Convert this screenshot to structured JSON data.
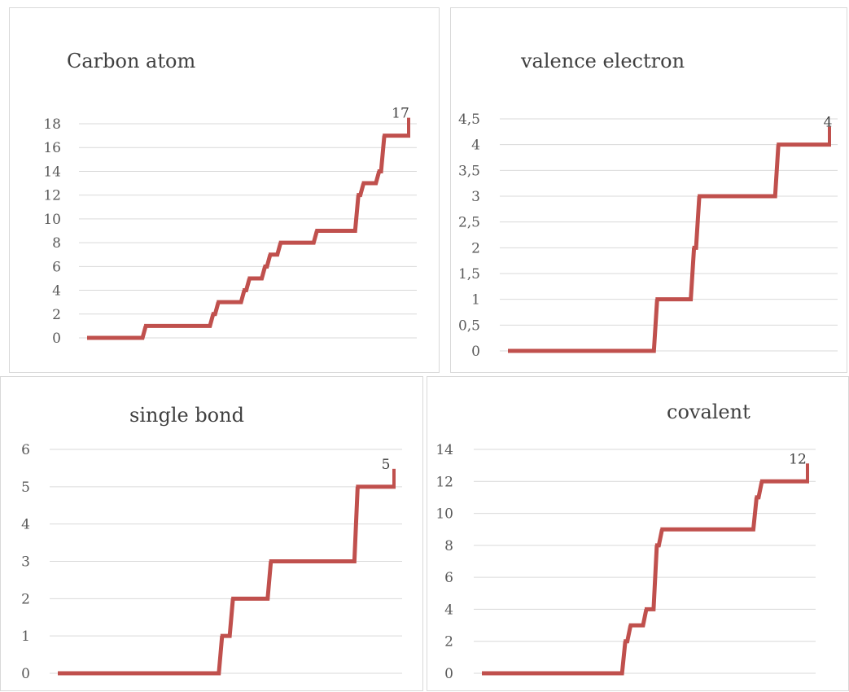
{
  "colors": {
    "series": "#c0504d",
    "grid": "#d9d9d9",
    "text": "#404040"
  },
  "chart_data": [
    {
      "type": "line",
      "title": "Carbon atom",
      "ylim": [
        0,
        18
      ],
      "yticks": [
        "0",
        "2",
        "4",
        "6",
        "8",
        "10",
        "12",
        "14",
        "16",
        "18"
      ],
      "grid": true,
      "series": [
        {
          "values": [
            0,
            0,
            0,
            0,
            0,
            0,
            0,
            0,
            0,
            0,
            0,
            1,
            1,
            1,
            1,
            1,
            1,
            1,
            1,
            1,
            1,
            1,
            1,
            1,
            2,
            3,
            3,
            3,
            3,
            3,
            4,
            5,
            5,
            5,
            6,
            7,
            7,
            8,
            8,
            8,
            8,
            8,
            8,
            8,
            9,
            9,
            9,
            9,
            9,
            9,
            9,
            9,
            12,
            13,
            13,
            13,
            14,
            17,
            17,
            17,
            17,
            17,
            17
          ]
        }
      ],
      "data_label": "17"
    },
    {
      "type": "line",
      "title": "valence electron",
      "ylim": [
        0,
        4.5
      ],
      "yticks": [
        "0",
        "0,5",
        "1",
        "1,5",
        "2",
        "2,5",
        "3",
        "3,5",
        "4",
        "4,5"
      ],
      "grid": true,
      "series": [
        {
          "values": [
            0,
            0,
            0,
            0,
            0,
            0,
            0,
            0,
            0,
            0,
            0,
            0,
            0,
            0,
            0,
            0,
            0,
            0,
            0,
            0,
            0,
            0,
            0,
            0,
            0,
            0,
            0,
            0,
            1,
            1,
            1,
            1,
            1,
            1,
            1,
            2,
            3,
            3,
            3,
            3,
            3,
            3,
            3,
            3,
            3,
            3,
            3,
            3,
            3,
            3,
            3,
            4,
            4,
            4,
            4,
            4,
            4,
            4,
            4,
            4,
            4,
            4
          ]
        }
      ],
      "data_label": "4"
    },
    {
      "type": "line",
      "title": "single bond",
      "ylim": [
        0,
        6
      ],
      "yticks": [
        "0",
        "1",
        "2",
        "3",
        "4",
        "5",
        "6"
      ],
      "grid": true,
      "series": [
        {
          "values": [
            0,
            0,
            0,
            0,
            0,
            0,
            0,
            0,
            0,
            0,
            0,
            0,
            0,
            0,
            0,
            0,
            0,
            0,
            0,
            0,
            0,
            0,
            0,
            0,
            0,
            0,
            0,
            0,
            0,
            0,
            1,
            1,
            2,
            2,
            2,
            2,
            2,
            2,
            2,
            3,
            3,
            3,
            3,
            3,
            3,
            3,
            3,
            3,
            3,
            3,
            3,
            3,
            3,
            3,
            3,
            5,
            5,
            5,
            5,
            5,
            5,
            5,
            5
          ]
        }
      ],
      "data_label": "5"
    },
    {
      "type": "line",
      "title": "covalent",
      "ylim": [
        0,
        14
      ],
      "yticks": [
        "0",
        "2",
        "4",
        "6",
        "8",
        "10",
        "12",
        "14"
      ],
      "grid": true,
      "series": [
        {
          "values": [
            0,
            0,
            0,
            0,
            0,
            0,
            0,
            0,
            0,
            0,
            0,
            0,
            0,
            0,
            0,
            0,
            0,
            0,
            0,
            0,
            0,
            0,
            0,
            0,
            0,
            0,
            0,
            2,
            3,
            3,
            3,
            4,
            4,
            8,
            9,
            9,
            9,
            9,
            9,
            9,
            9,
            9,
            9,
            9,
            9,
            9,
            9,
            9,
            9,
            9,
            9,
            9,
            11,
            12,
            12,
            12,
            12,
            12,
            12,
            12,
            12,
            12,
            12
          ]
        }
      ],
      "data_label": "12"
    }
  ]
}
